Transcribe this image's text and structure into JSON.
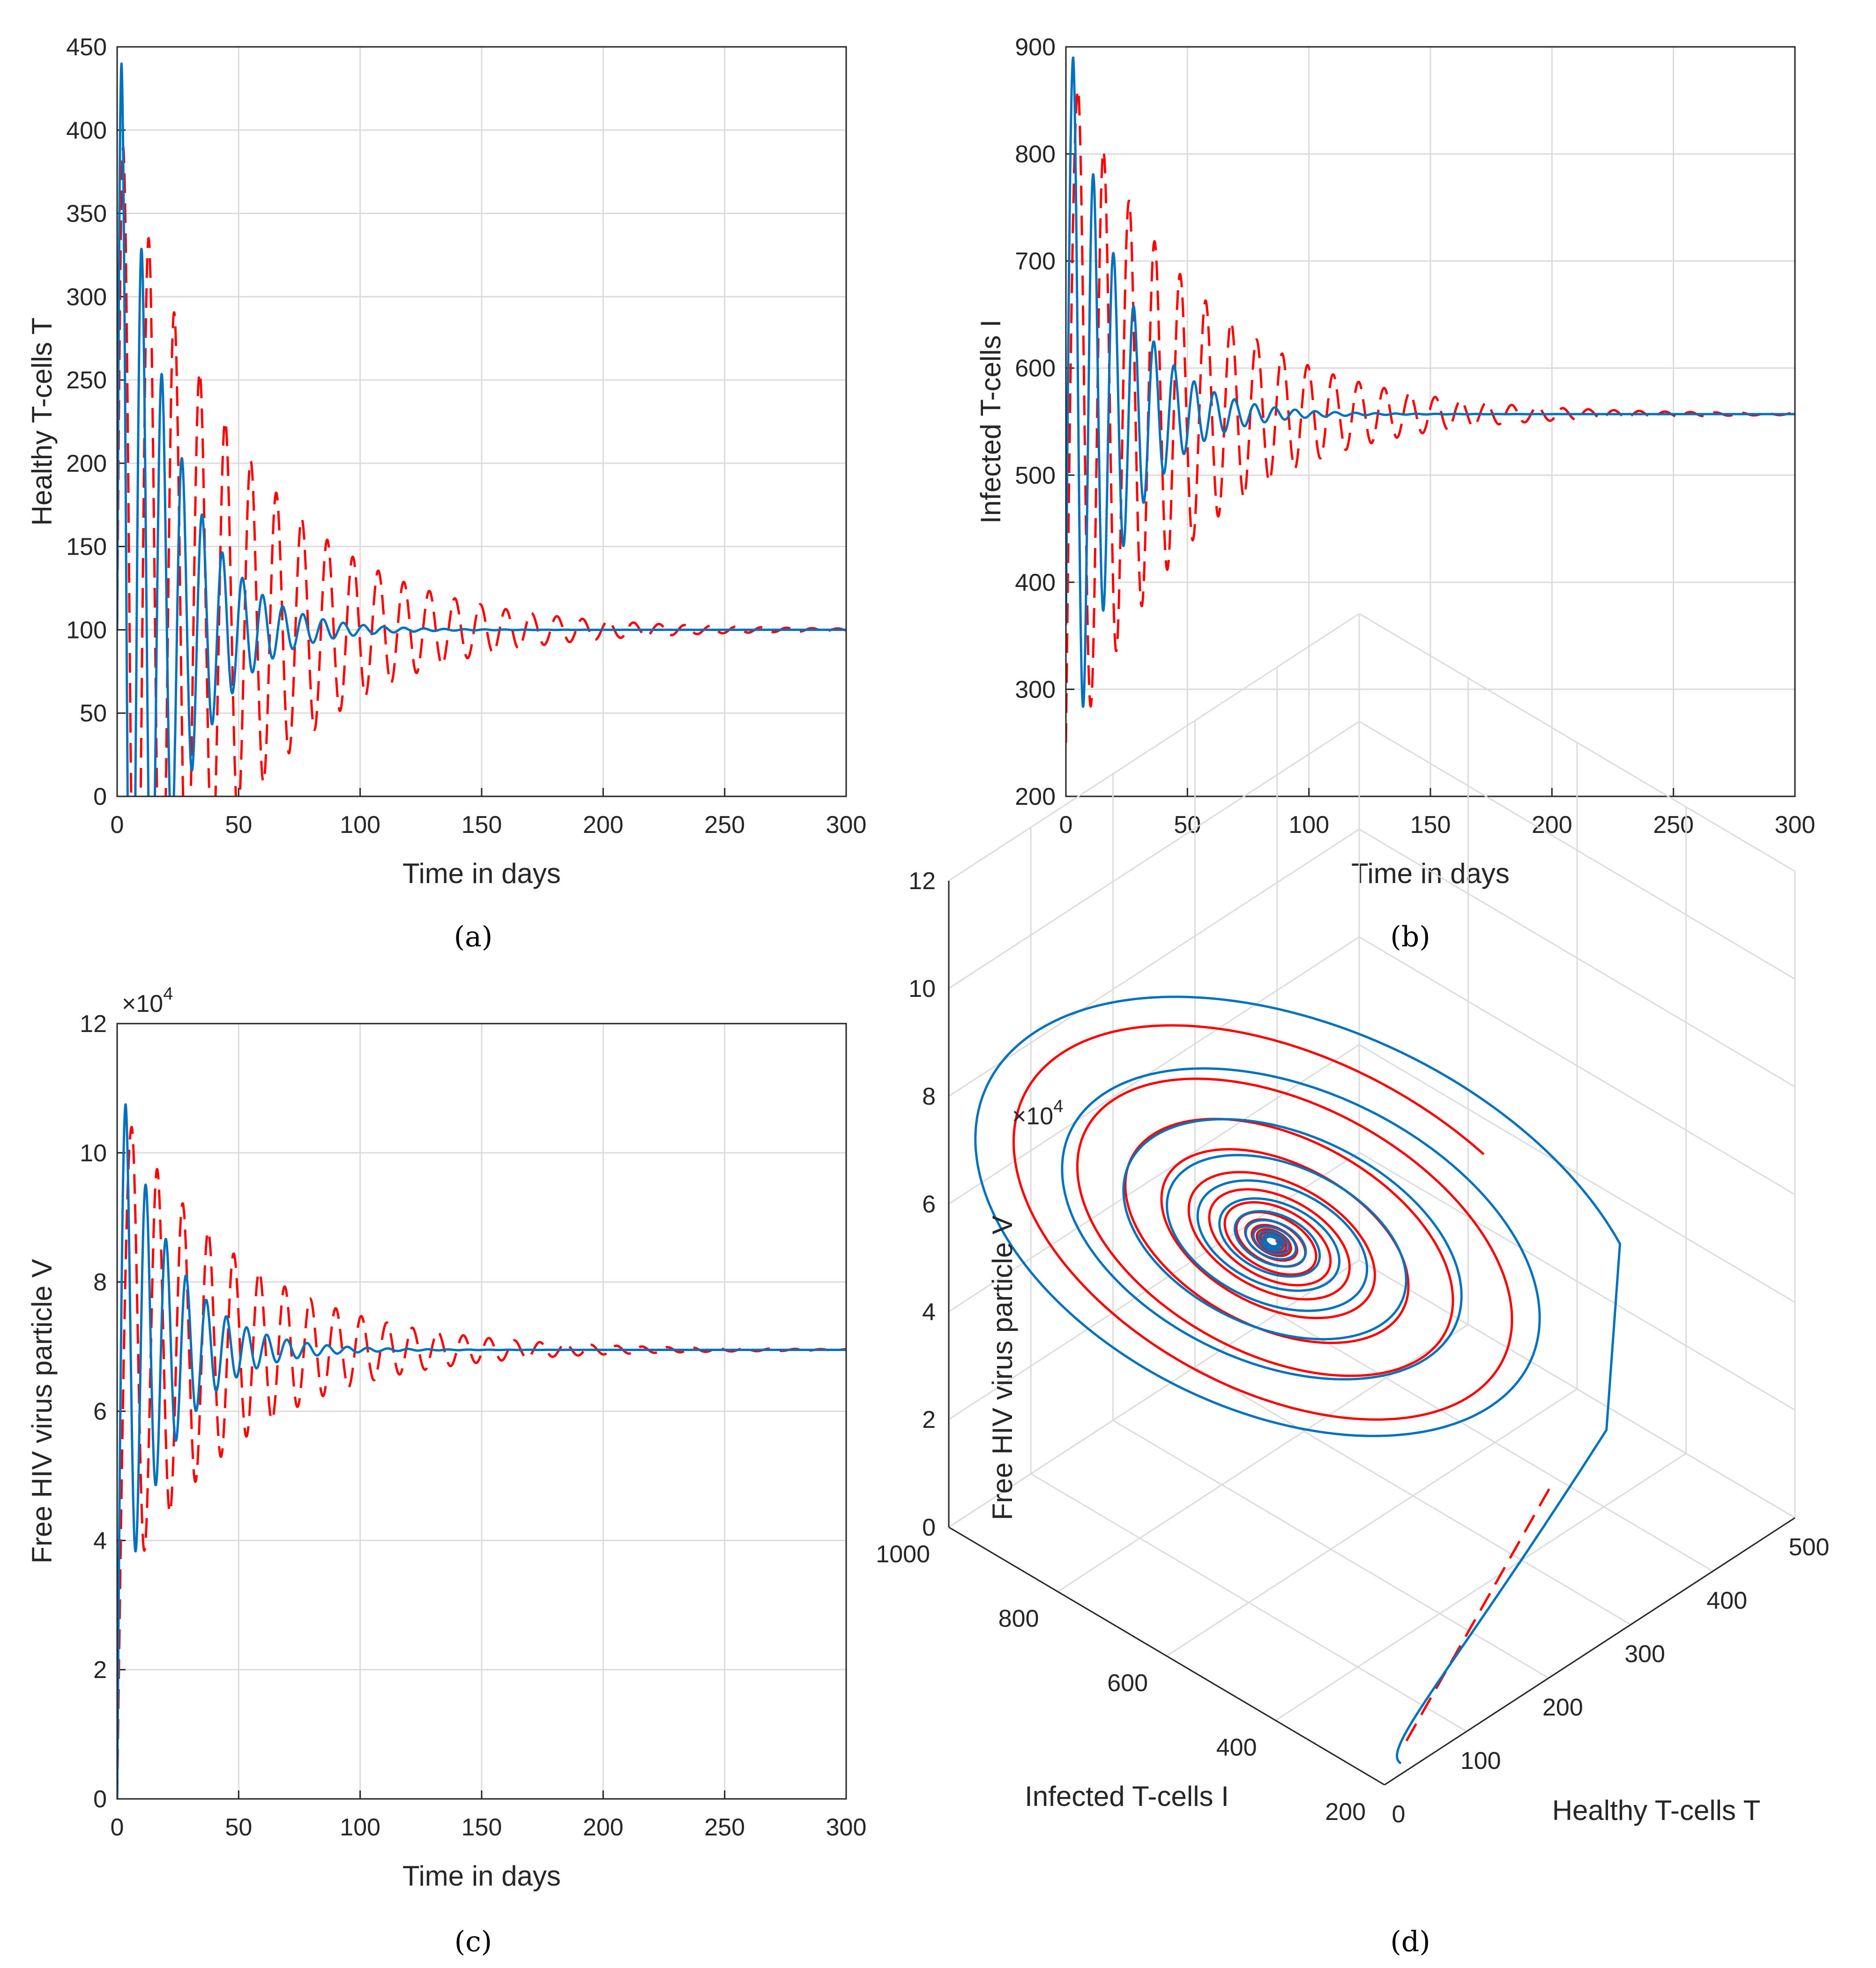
{
  "chart_data": [
    {
      "panel": "a",
      "type": "line",
      "caption": "(a)",
      "xlabel": "Time in days",
      "ylabel": "Healthy T-cells T",
      "xlim": [
        0,
        300
      ],
      "ylim": [
        0,
        450
      ],
      "xticks": [
        "0",
        "50",
        "100",
        "150",
        "200",
        "250",
        "300"
      ],
      "yticks": [
        "0",
        "50",
        "100",
        "150",
        "200",
        "250",
        "300",
        "350",
        "400",
        "450"
      ],
      "grid": true,
      "series": [
        {
          "name": "solid",
          "style": "solid",
          "color": "#0072BD",
          "x0": 0,
          "x1": 300,
          "y0": 100,
          "eq": 100,
          "amp": 340,
          "first_peak_x": 1.8,
          "first_peak_y": 440,
          "period": 8.3,
          "decay": 0.048
        },
        {
          "name": "dashed",
          "style": "dashed",
          "color": "#FF0000",
          "x0": 0,
          "x1": 300,
          "y0": 100,
          "eq": 100,
          "amp": 290,
          "first_peak_x": 2.5,
          "first_peak_y": 390,
          "period": 10.5,
          "decay": 0.02
        }
      ]
    },
    {
      "panel": "b",
      "type": "line",
      "caption": "(b)",
      "xlabel": "Time in days",
      "ylabel": "Infected T-cells I",
      "xlim": [
        0,
        300
      ],
      "ylim": [
        200,
        900
      ],
      "xticks": [
        "0",
        "50",
        "100",
        "150",
        "200",
        "250",
        "300"
      ],
      "yticks": [
        "200",
        "300",
        "400",
        "500",
        "600",
        "700",
        "800",
        "900"
      ],
      "grid": true,
      "series": [
        {
          "name": "solid",
          "style": "solid",
          "color": "#0072BD",
          "x0": 0,
          "x1": 300,
          "y0": 360,
          "eq": 557,
          "amp": 335,
          "first_peak_x": 3,
          "first_peak_y": 890,
          "period": 8.3,
          "decay": 0.048
        },
        {
          "name": "dashed",
          "style": "dashed",
          "color": "#FF0000",
          "x0": 0,
          "x1": 300,
          "y0": 250,
          "eq": 557,
          "amp": 300,
          "first_peak_x": 5,
          "first_peak_y": 860,
          "period": 10.5,
          "decay": 0.02
        }
      ]
    },
    {
      "panel": "c",
      "type": "line",
      "caption": "(c)",
      "xlabel": "Time in days",
      "ylabel": "Free HIV virus particle V",
      "xlim": [
        0,
        300
      ],
      "ylim": [
        0,
        12
      ],
      "y_multiplier": "×10",
      "y_multiplier_exp": "4",
      "xticks": [
        "0",
        "50",
        "100",
        "150",
        "200",
        "250",
        "300"
      ],
      "yticks": [
        "0",
        "2",
        "4",
        "6",
        "8",
        "10",
        "12"
      ],
      "grid": true,
      "series": [
        {
          "name": "solid",
          "style": "solid",
          "color": "#0072BD",
          "x0": 0,
          "x1": 300,
          "y0": 0,
          "eq": 6.95,
          "amp": 3.8,
          "first_peak_x": 3.5,
          "first_peak_y": 10.75,
          "period": 8.3,
          "decay": 0.048
        },
        {
          "name": "dashed",
          "style": "dashed",
          "color": "#FF0000",
          "x0": 0,
          "x1": 300,
          "y0": 0,
          "eq": 6.95,
          "amp": 3.4,
          "first_peak_x": 6,
          "first_peak_y": 10.4,
          "period": 10.5,
          "decay": 0.02
        }
      ]
    },
    {
      "panel": "d",
      "type": "line3d",
      "caption": "(d)",
      "xlabel": "Healthy T-cells T",
      "ylabel": "Infected T-cells I",
      "zlabel": "Free HIV virus particle V",
      "xlim": [
        0,
        500
      ],
      "ylim": [
        200,
        1000
      ],
      "zlim": [
        0,
        12
      ],
      "z_multiplier": "×10",
      "z_multiplier_exp": "4",
      "xticks": [
        "0",
        "100",
        "200",
        "300",
        "400",
        "500"
      ],
      "yticks": [
        "200",
        "400",
        "600",
        "800",
        "1000"
      ],
      "zticks": [
        "0",
        "2",
        "4",
        "6",
        "8",
        "10",
        "12"
      ],
      "grid": true,
      "series": [
        {
          "name": "solid",
          "style": "solid",
          "color": "#0072BD",
          "equilibrium": [
            100,
            557,
            6.95
          ]
        },
        {
          "name": "dashed",
          "style": "dashed-then-solid",
          "color": "#FF0000",
          "equilibrium": [
            100,
            557,
            6.95
          ]
        }
      ]
    }
  ]
}
